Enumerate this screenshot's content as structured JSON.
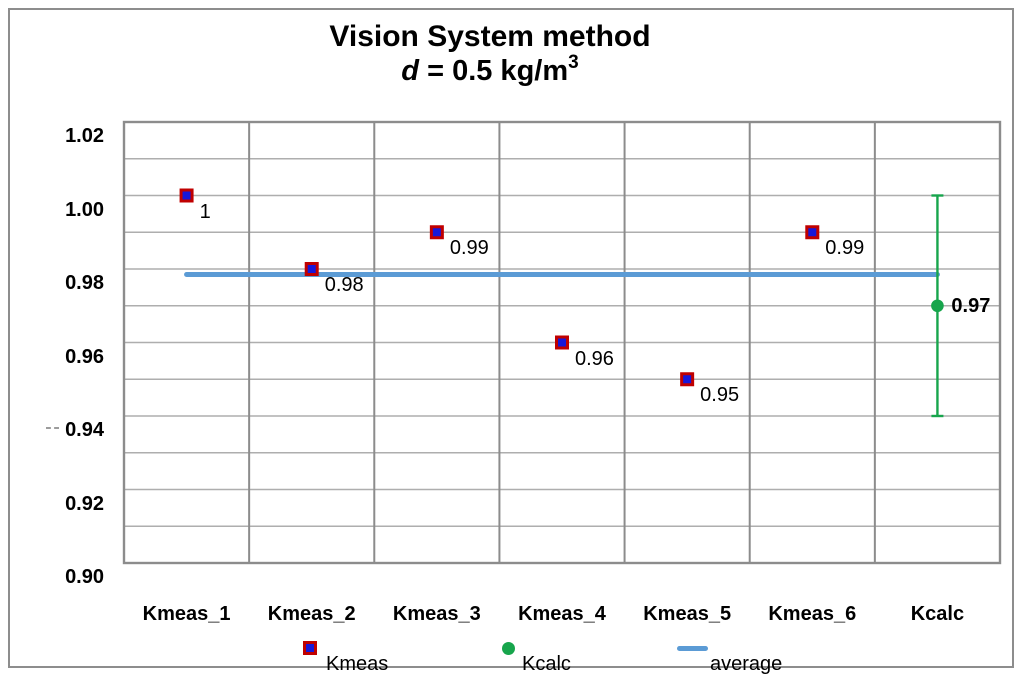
{
  "figure": {
    "title_line1": "Vision System method",
    "title_line2": {
      "italic": "d",
      "text": " = 0.5 kg/m",
      "sup": "3"
    }
  },
  "axis": {
    "y_tick_labels": [
      "1.02",
      "1.00",
      "0.98",
      "0.96",
      "0.94",
      "0.92",
      "0.90"
    ],
    "x_labels": [
      "Kmeas_1",
      "Kmeas_2",
      "Kmeas_3",
      "Kmeas_4",
      "Kmeas_5",
      "Kmeas_6",
      "Kcalc"
    ]
  },
  "chart_data": {
    "type": "scatter",
    "title": "Vision System method",
    "subtitle": "d = 0.5 kg/m3",
    "categories": [
      "Kmeas_1",
      "Kmeas_2",
      "Kmeas_3",
      "Kmeas_4",
      "Kmeas_5",
      "Kmeas_6",
      "Kcalc"
    ],
    "ylim": [
      0.9,
      1.02
    ],
    "y_major_unit": 0.02,
    "y_minor_unit": 0.01,
    "grid": true,
    "legend_position": "bottom",
    "series": [
      {
        "name": "Kmeas",
        "kind": "scatter",
        "marker": "square",
        "fill": "#1717d9",
        "border": "#c00000",
        "points": [
          {
            "category": "Kmeas_1",
            "value": 1.0,
            "label": "1"
          },
          {
            "category": "Kmeas_2",
            "value": 0.98,
            "label": "0.98"
          },
          {
            "category": "Kmeas_3",
            "value": 0.99,
            "label": "0.99"
          },
          {
            "category": "Kmeas_4",
            "value": 0.96,
            "label": "0.96"
          },
          {
            "category": "Kmeas_5",
            "value": 0.95,
            "label": "0.95"
          },
          {
            "category": "Kmeas_6",
            "value": 0.99,
            "label": "0.99"
          }
        ]
      },
      {
        "name": "Kcalc",
        "kind": "scatter",
        "marker": "circle",
        "fill": "#17a54c",
        "points": [
          {
            "category": "Kcalc",
            "value": 0.97,
            "label": "0.97",
            "label_bold": true,
            "error_low": 0.94,
            "error_high": 1.0
          }
        ]
      },
      {
        "name": "average",
        "kind": "hline",
        "color": "#5b9bd5",
        "value": 0.9785,
        "x_start_category": "Kmeas_1",
        "x_end_category": "Kcalc"
      }
    ]
  },
  "legend": {
    "items": [
      {
        "label": "Kmeas",
        "marker": "square"
      },
      {
        "label": "Kcalc",
        "marker": "circle"
      },
      {
        "label": "average",
        "marker": "line"
      }
    ]
  },
  "colors": {
    "kmeas_fill": "#1717d9",
    "kmeas_border": "#c00000",
    "kcalc_green": "#17a54c",
    "average_blue": "#5b9bd5",
    "grid_horizontal": "#aeaeae",
    "grid_vertical": "#8c8c8c",
    "plot_border": "#8c8c8c",
    "figure_border": "#8d8d8d",
    "text": "#000000"
  }
}
